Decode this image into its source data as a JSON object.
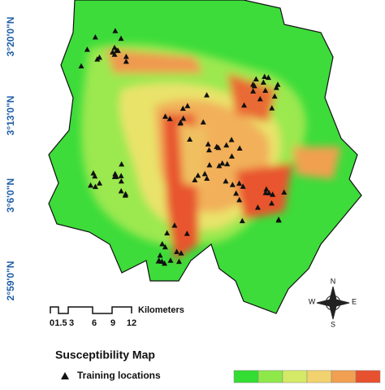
{
  "map": {
    "latitude_labels": [
      "3°20'0\"N",
      "3°13'0\"N",
      "3°6'0\"N",
      "2°59'0\"N"
    ],
    "scale_bar": {
      "labels": [
        0,
        1.5,
        3,
        6,
        9,
        12
      ],
      "unit": "Kilometers"
    },
    "compass": {
      "north": "N",
      "south": "S",
      "east": "E",
      "west": "W"
    },
    "legend": {
      "title": "Susceptibility Map",
      "marker_label": "Training locations"
    }
  }
}
